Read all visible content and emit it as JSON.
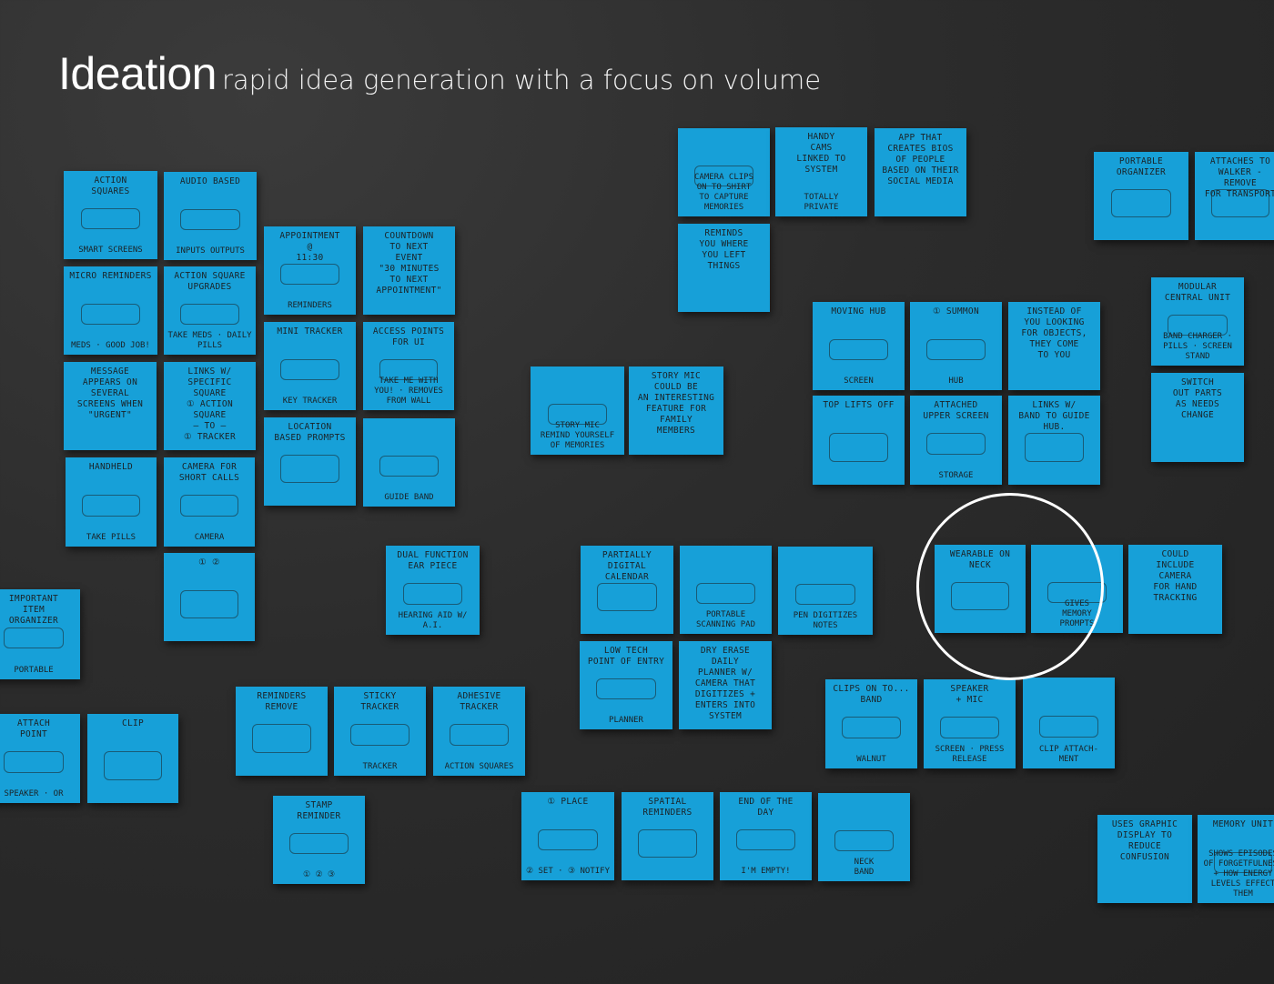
{
  "header": {
    "title": "Ideation",
    "subtitle": "rapid idea generation with a focus on volume"
  },
  "colors": {
    "note": "#17a0d8",
    "background": "#2a2a2a",
    "ink": "#1b2226",
    "highlight_circle": "#ffffff"
  },
  "notes": [
    {
      "title": "Action\nSquares",
      "caption": "Smart screens"
    },
    {
      "title": "Audio based",
      "caption": "Inputs  Outputs"
    },
    {
      "title": "Micro reminders",
      "caption": "Meds · Good job!"
    },
    {
      "title": "Action square\nupgrades",
      "caption": "Take meds · Daily pills"
    },
    {
      "title": "Message\nappears on\nseveral\nscreens when\n\"Urgent\"",
      "caption": ""
    },
    {
      "title": "Links w/\nspecific\nsquare\n① Action square\n— to —\n① Tracker",
      "caption": ""
    },
    {
      "title": "Handheld",
      "caption": "Take pills"
    },
    {
      "title": "Camera for\nshort calls",
      "caption": "Camera"
    },
    {
      "title": "① ②",
      "caption": ""
    },
    {
      "title": "Appointment\n@\n11:30",
      "caption": "Reminders"
    },
    {
      "title": "Countdown\nto next\nevent\n\"30 minutes\nto next\nappointment\"",
      "caption": ""
    },
    {
      "title": "Mini tracker",
      "caption": "Key tracker"
    },
    {
      "title": "Access points\nfor UI",
      "caption": "Take me with you! · Removes from wall"
    },
    {
      "title": "Location\nbased prompts",
      "caption": ""
    },
    {
      "title": "",
      "caption": "Guide band"
    },
    {
      "title": "Important\nitem\norganizer",
      "caption": "Portable"
    },
    {
      "title": "Attach\npoint",
      "caption": "Speaker · or"
    },
    {
      "title": "Clip",
      "caption": ""
    },
    {
      "title": "Dual function\near piece",
      "caption": "Hearing aid w/ A.I."
    },
    {
      "title": "Reminders\nremove",
      "caption": ""
    },
    {
      "title": "Sticky\ntracker",
      "caption": "Tracker"
    },
    {
      "title": "Adhesive\ntracker",
      "caption": "Action squares"
    },
    {
      "title": "Stamp\nreminder",
      "caption": "① ② ③"
    },
    {
      "title": "",
      "caption": "Story mic\nremind yourself of memories"
    },
    {
      "title": "Story mic\ncould be\nan interesting\nfeature for\nfamily\nmembers",
      "caption": ""
    },
    {
      "title": "",
      "caption": "Camera clips\non to shirt\nto capture memories"
    },
    {
      "title": "Handy\ncams\nLinked to\nsystem",
      "caption": "Totally\nprivate"
    },
    {
      "title": "App that\ncreates bios\nof people\nbased on their\nsocial media",
      "caption": ""
    },
    {
      "title": "Reminds\nyou where\nyou left\nthings",
      "caption": ""
    },
    {
      "title": "Moving hub",
      "caption": "Screen"
    },
    {
      "title": "① Summon",
      "caption": "Hub"
    },
    {
      "title": "Instead of\nyou looking\nfor objects,\nthey come\nto you",
      "caption": ""
    },
    {
      "title": "Top lifts off",
      "caption": ""
    },
    {
      "title": "Attached\nupper screen",
      "caption": "Storage"
    },
    {
      "title": "Links w/\nband to guide\nhub.",
      "caption": ""
    },
    {
      "title": "Portable\norganizer",
      "caption": ""
    },
    {
      "title": "Attaches to\nwalker - remove\nfor transport",
      "caption": ""
    },
    {
      "title": "Modular\ncentral unit",
      "caption": "Band charger · Pills · Screen stand"
    },
    {
      "title": "Switch\nout parts\nas needs\nchange",
      "caption": ""
    },
    {
      "title": "Partially\ndigital\ncalendar",
      "caption": ""
    },
    {
      "title": "",
      "caption": "Portable\nscanning pad"
    },
    {
      "title": "",
      "caption": "Pen digitizes\nnotes"
    },
    {
      "title": "Low tech\npoint of entry",
      "caption": "Planner"
    },
    {
      "title": "Dry erase\ndaily\nplanner w/\ncamera that\ndigitizes +\nenters into\nsystem",
      "caption": ""
    },
    {
      "title": "Wearable on neck",
      "caption": ""
    },
    {
      "title": "",
      "caption": "Gives\nmemory\nprompts"
    },
    {
      "title": "Could\ninclude\ncamera\nfor hand\ntracking",
      "caption": ""
    },
    {
      "title": "Clips on to...\nband",
      "caption": "Walnut"
    },
    {
      "title": "Speaker\n+ mic",
      "caption": "Screen · Press release"
    },
    {
      "title": "",
      "caption": "Clip attach-\nment"
    },
    {
      "title": "① Place",
      "caption": "② Set · ③ Notify"
    },
    {
      "title": "Spatial\nreminders",
      "caption": ""
    },
    {
      "title": "End of the\nday",
      "caption": "I'm empty!"
    },
    {
      "title": "",
      "caption": "Neck\nband"
    },
    {
      "title": "Uses graphic\ndisplay to\nreduce\nconfusion",
      "caption": ""
    },
    {
      "title": "Memory unit",
      "caption": "Shows episodes\nof forgetfulness\n+ how energy\nlevels effect\nthem"
    }
  ]
}
